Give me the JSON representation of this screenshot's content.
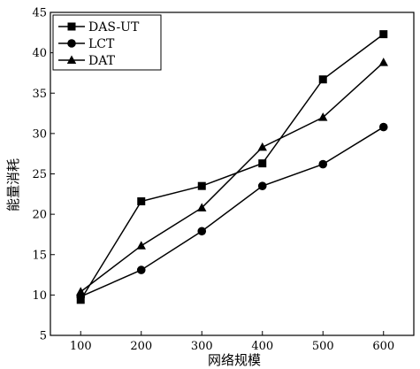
{
  "chart_data": {
    "type": "line",
    "title": "",
    "xlabel": "网络规模",
    "ylabel": "能量消耗",
    "x": [
      100,
      200,
      300,
      400,
      500,
      600
    ],
    "xlim": [
      50,
      650
    ],
    "ylim": [
      5,
      45
    ],
    "xticks": [
      100,
      200,
      300,
      400,
      500,
      600
    ],
    "yticks": [
      5,
      10,
      15,
      20,
      25,
      30,
      35,
      40,
      45
    ],
    "grid": false,
    "legend_position": "top-left",
    "series": [
      {
        "name": "DAS-UT",
        "marker": "square",
        "values": [
          9.4,
          21.6,
          23.5,
          26.3,
          36.7,
          42.3
        ]
      },
      {
        "name": "LCT",
        "marker": "circle",
        "values": [
          9.8,
          13.1,
          17.9,
          23.5,
          26.2,
          30.8
        ]
      },
      {
        "name": "DAT",
        "marker": "triangle",
        "values": [
          10.4,
          16.1,
          20.8,
          28.3,
          32.0,
          38.8
        ]
      }
    ]
  }
}
